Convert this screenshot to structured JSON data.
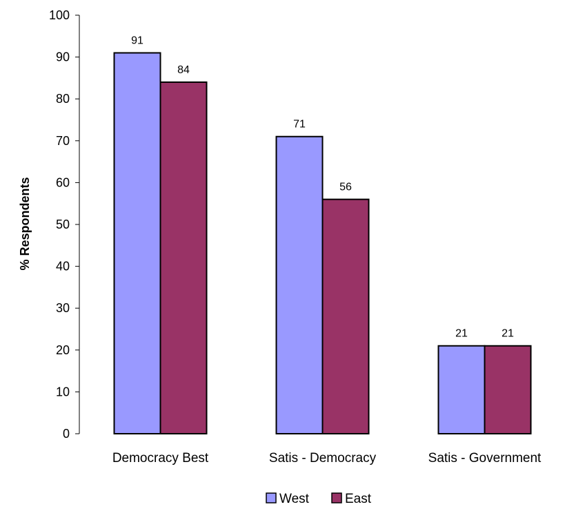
{
  "chart_data": {
    "type": "bar",
    "categories": [
      "Democracy Best",
      "Satis - Democracy",
      "Satis - Government"
    ],
    "series": [
      {
        "name": "West",
        "values": [
          91,
          71,
          21
        ],
        "color": "#9999ff"
      },
      {
        "name": "East",
        "values": [
          84,
          56,
          21
        ],
        "color": "#993366"
      }
    ],
    "ylabel": "% Respondents",
    "ylim": [
      0,
      100
    ],
    "yticks": [
      0,
      10,
      20,
      30,
      40,
      50,
      60,
      70,
      80,
      90,
      100
    ],
    "grid": false,
    "legend_position": "bottom",
    "data_labels": true
  }
}
